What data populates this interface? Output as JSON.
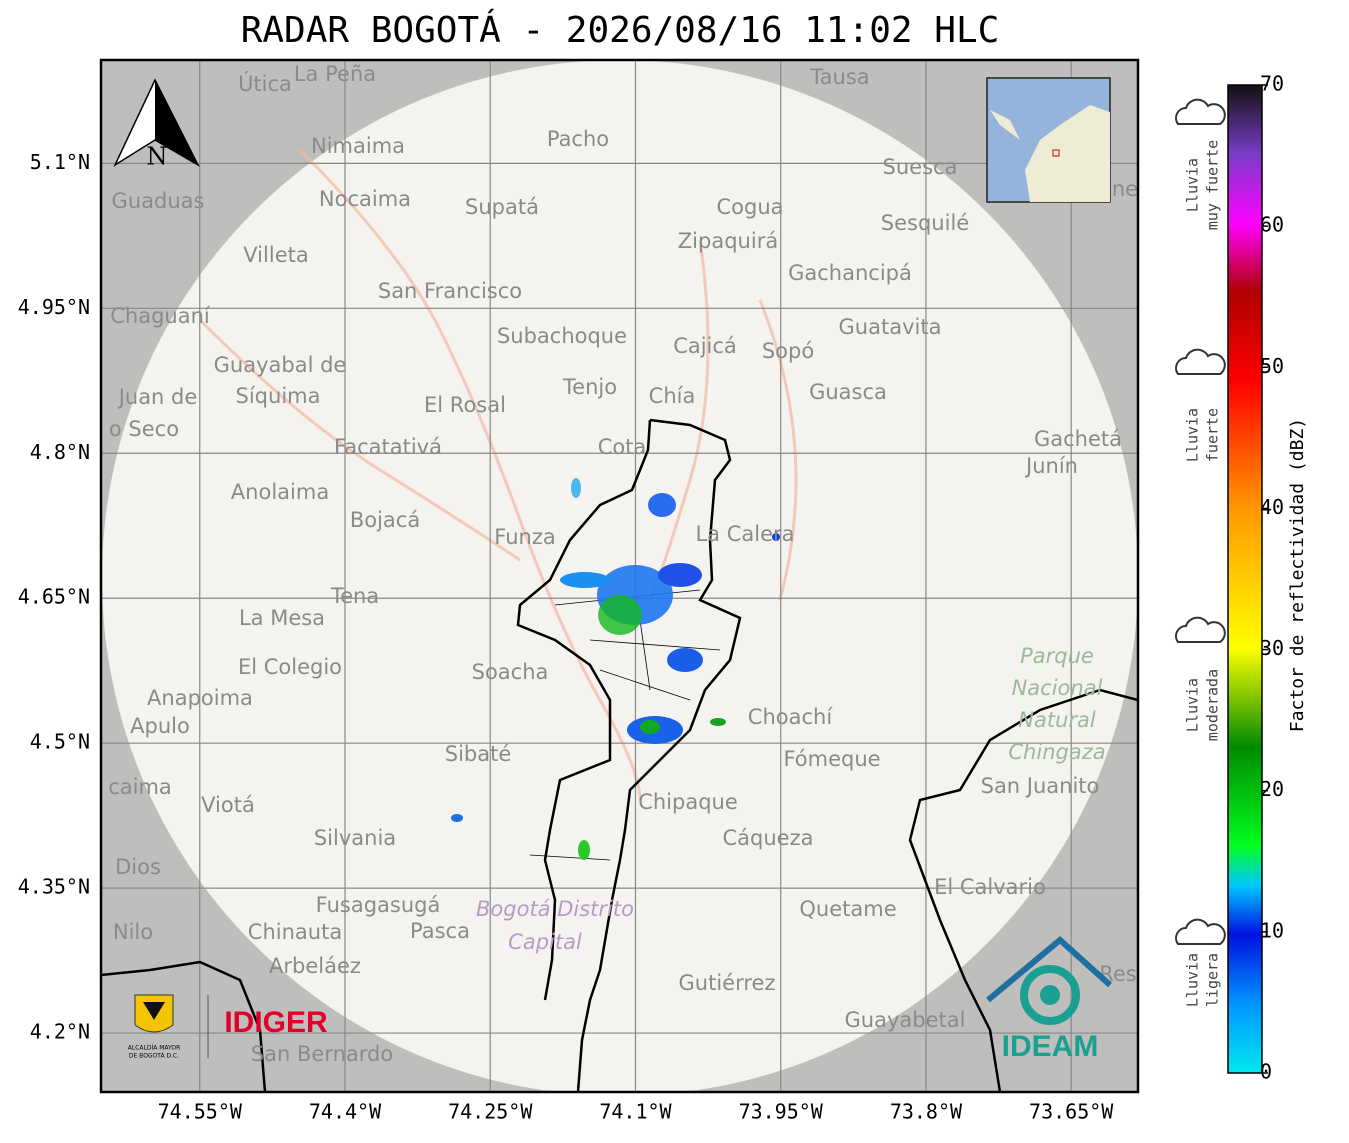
{
  "map": {
    "title": "RADAR BOGOTÁ - 2026/08/16 11:02 HLC",
    "xlim": [
      -74.652,
      -73.581
    ],
    "ylim": [
      4.139,
      5.207
    ],
    "xticks": [
      {
        "value": -74.55,
        "label": "74.55°W"
      },
      {
        "value": -74.4,
        "label": "74.4°W"
      },
      {
        "value": -74.25,
        "label": "74.25°W"
      },
      {
        "value": -74.1,
        "label": "74.1°W"
      },
      {
        "value": -73.95,
        "label": "73.95°W"
      },
      {
        "value": -73.8,
        "label": "73.8°W"
      },
      {
        "value": -73.65,
        "label": "73.65°W"
      }
    ],
    "yticks": [
      {
        "value": 4.2,
        "label": "4.2°N"
      },
      {
        "value": 4.35,
        "label": "4.35°N"
      },
      {
        "value": 4.5,
        "label": "4.5°N"
      },
      {
        "value": 4.65,
        "label": "4.65°N"
      },
      {
        "value": 4.8,
        "label": "4.8°N"
      },
      {
        "value": 4.95,
        "label": "4.95°N"
      },
      {
        "value": 5.1,
        "label": "5.1°N"
      }
    ],
    "north": "N",
    "places": [
      "Útica",
      "La Peña",
      "Tausa",
      "Pacho",
      "Nimaima",
      "Guaduas",
      "Nocaima",
      "Supatá",
      "Cogua",
      "Suesca",
      "Sesquilé",
      "Zipaquirá",
      "Villeta",
      "Gachancipá",
      "San Francisco",
      "Chaguaní",
      "Guatavita",
      "Subachoque",
      "Cajicá",
      "Sopó",
      "Guayabal de",
      "Síquima",
      "Juan de",
      "o Seco",
      "Tenjo",
      "Chía",
      "El Rosal",
      "Guasca",
      "Cota",
      "Facatativá",
      "Gachetá",
      "Junín",
      "Anolaima",
      "Bojacá",
      "Funza",
      "La Calera",
      "Tena",
      "La Mesa",
      "El Colegio",
      "Soacha",
      "Anapoima",
      "Apulo",
      "Choachí",
      "Sibaté",
      "Fómeque",
      "San Juanito",
      "caima",
      "Viotá",
      "Chipaque",
      "Silvania",
      "Cáqueza",
      "Dios",
      "El Calvario",
      "Fusagasugá",
      "Quetame",
      "Nilo",
      "Chinauta",
      "Pasca",
      "Arbeláez",
      "Gutiérrez",
      "Res",
      "Guayabetal",
      "San Bernardo",
      "ne"
    ],
    "park": [
      "Parque",
      "Nacional",
      "Natural",
      "Chingaza"
    ],
    "district": [
      "Bogotá Distrito",
      "Capital"
    ],
    "logos": {
      "alcaldia": [
        "ALCALDÍA MAYOR",
        "DE BOGOTÁ D.C."
      ],
      "idiger": "IDIGER",
      "ideam": "IDEAM"
    }
  },
  "colorbar": {
    "label": "Factor de reflectividad (dBZ)",
    "lim": [
      0,
      70
    ],
    "ticks": [
      0,
      10,
      20,
      30,
      40,
      50,
      60,
      70
    ]
  },
  "rain_levels": [
    [
      "Lluvia",
      "muy fuerte"
    ],
    [
      "Lluvia",
      "fuerte"
    ],
    [
      "Lluvia",
      "moderada"
    ],
    [
      "Lluvia",
      "ligera"
    ]
  ]
}
